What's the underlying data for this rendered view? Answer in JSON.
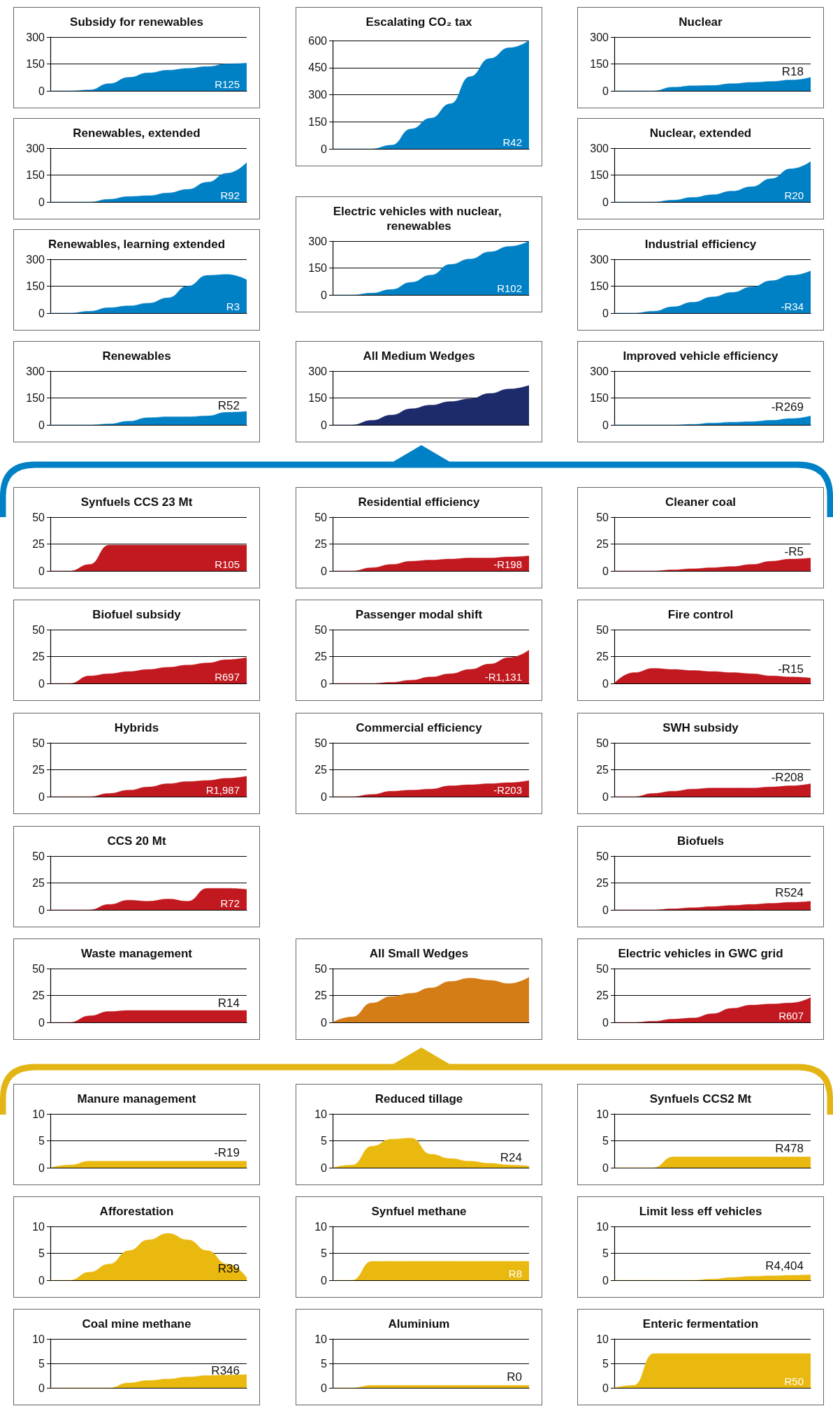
{
  "chart_data": [
    {
      "type": "area",
      "title": "Subsidy for renewables",
      "categories": [
        null,
        null,
        null,
        null,
        null,
        null,
        null,
        null,
        null,
        null,
        null
      ],
      "values": [
        0,
        0,
        5,
        40,
        75,
        100,
        115,
        125,
        135,
        150,
        155
      ],
      "color": "#0081c6",
      "ylim": [
        0,
        300
      ],
      "yticks": [
        0,
        150,
        300
      ],
      "grid": "y",
      "tick_labels": "y",
      "annotations": [
        "R125"
      ]
    },
    {
      "type": "area",
      "title": "Escalating CO₂ tax",
      "categories": [
        null,
        null,
        null,
        null,
        null,
        null,
        null,
        null,
        null,
        null,
        null
      ],
      "values": [
        0,
        0,
        0,
        20,
        110,
        170,
        250,
        400,
        500,
        560,
        600
      ],
      "color": "#0081c6",
      "ylim": [
        0,
        600
      ],
      "yticks": [
        0,
        150,
        300,
        450,
        600
      ],
      "grid": "y",
      "tick_labels": "y",
      "annotations": [
        "R42"
      ]
    },
    {
      "type": "area",
      "title": "Nuclear",
      "categories": [
        null,
        null,
        null,
        null,
        null,
        null,
        null,
        null,
        null,
        null,
        null
      ],
      "values": [
        0,
        0,
        0,
        20,
        28,
        30,
        40,
        47,
        52,
        60,
        75
      ],
      "color": "#0081c6",
      "ylim": [
        0,
        300
      ],
      "yticks": [
        0,
        150,
        300
      ],
      "grid": "y",
      "tick_labels": "y",
      "annotations": [
        "R18"
      ]
    },
    {
      "type": "area",
      "title": "Renewables, extended",
      "categories": [
        null,
        null,
        null,
        null,
        null,
        null,
        null,
        null,
        null,
        null,
        null
      ],
      "values": [
        0,
        0,
        0,
        15,
        30,
        35,
        50,
        70,
        110,
        160,
        220
      ],
      "color": "#0081c6",
      "ylim": [
        0,
        300
      ],
      "yticks": [
        0,
        150,
        300
      ],
      "grid": "y",
      "tick_labels": "y",
      "annotations": [
        "R92"
      ]
    },
    {
      "type": "area",
      "title": "Nuclear, extended",
      "categories": [
        null,
        null,
        null,
        null,
        null,
        null,
        null,
        null,
        null,
        null,
        null
      ],
      "values": [
        0,
        0,
        0,
        10,
        25,
        40,
        60,
        85,
        130,
        185,
        225
      ],
      "color": "#0081c6",
      "ylim": [
        0,
        300
      ],
      "yticks": [
        0,
        150,
        300
      ],
      "grid": "y",
      "tick_labels": "y",
      "annotations": [
        "R20"
      ]
    },
    {
      "type": "area",
      "title": "Electric vehicles with nuclear, renewables",
      "categories": [
        null,
        null,
        null,
        null,
        null,
        null,
        null,
        null,
        null,
        null,
        null
      ],
      "values": [
        0,
        0,
        10,
        30,
        70,
        110,
        170,
        200,
        240,
        270,
        300
      ],
      "color": "#0081c6",
      "ylim": [
        0,
        300
      ],
      "yticks": [
        0,
        150,
        300
      ],
      "grid": "y",
      "tick_labels": "y",
      "annotations": [
        "R102"
      ]
    },
    {
      "type": "area",
      "title": "Renewables, learning extended",
      "categories": [
        null,
        null,
        null,
        null,
        null,
        null,
        null,
        null,
        null,
        null,
        null
      ],
      "values": [
        0,
        0,
        10,
        30,
        40,
        55,
        85,
        150,
        210,
        215,
        185
      ],
      "color": "#0081c6",
      "ylim": [
        0,
        300
      ],
      "yticks": [
        0,
        150,
        300
      ],
      "grid": "y",
      "tick_labels": "y",
      "annotations": [
        "R3"
      ]
    },
    {
      "type": "area",
      "title": "Industrial efficiency",
      "categories": [
        null,
        null,
        null,
        null,
        null,
        null,
        null,
        null,
        null,
        null,
        null
      ],
      "values": [
        0,
        0,
        10,
        35,
        60,
        90,
        115,
        145,
        180,
        210,
        235
      ],
      "color": "#0081c6",
      "ylim": [
        0,
        300
      ],
      "yticks": [
        0,
        150,
        300
      ],
      "grid": "y",
      "tick_labels": "y",
      "annotations": [
        "-R34"
      ]
    },
    {
      "type": "area",
      "title": "Renewables",
      "categories": [
        null,
        null,
        null,
        null,
        null,
        null,
        null,
        null,
        null,
        null,
        null
      ],
      "values": [
        0,
        0,
        0,
        5,
        20,
        40,
        45,
        45,
        50,
        70,
        75
      ],
      "color": "#0081c6",
      "ylim": [
        0,
        300
      ],
      "yticks": [
        0,
        150,
        300
      ],
      "grid": "y",
      "tick_labels": "y",
      "annotations": [
        "R52"
      ]
    },
    {
      "type": "area",
      "title": "All Medium Wedges",
      "categories": [
        null,
        null,
        null,
        null,
        null,
        null,
        null,
        null,
        null,
        null,
        null
      ],
      "values": [
        0,
        0,
        25,
        55,
        90,
        110,
        130,
        145,
        175,
        200,
        220
      ],
      "color": "#1d2a6b",
      "ylim": [
        0,
        300
      ],
      "yticks": [
        0,
        150,
        300
      ],
      "grid": "y",
      "tick_labels": "y"
    },
    {
      "type": "area",
      "title": "Improved vehicle efficiency",
      "categories": [
        null,
        null,
        null,
        null,
        null,
        null,
        null,
        null,
        null,
        null,
        null
      ],
      "values": [
        0,
        0,
        0,
        0,
        3,
        10,
        15,
        18,
        25,
        35,
        50
      ],
      "color": "#0081c6",
      "ylim": [
        0,
        300
      ],
      "yticks": [
        0,
        150,
        300
      ],
      "grid": "y",
      "tick_labels": "y",
      "annotations": [
        "-R269"
      ]
    },
    {
      "type": "area",
      "title": "Synfuels CCS 23 Mt",
      "categories": [
        null,
        null,
        null,
        null,
        null,
        null,
        null,
        null,
        null,
        null,
        null
      ],
      "values": [
        0,
        0,
        6,
        24,
        24,
        24,
        24,
        24,
        24,
        24,
        24
      ],
      "color": "#c1191f",
      "ylim": [
        0,
        50
      ],
      "yticks": [
        0,
        25,
        50
      ],
      "grid": "y",
      "tick_labels": "y",
      "annotations": [
        "R105"
      ]
    },
    {
      "type": "area",
      "title": "Residential efficiency",
      "categories": [
        null,
        null,
        null,
        null,
        null,
        null,
        null,
        null,
        null,
        null,
        null
      ],
      "values": [
        0,
        0,
        3,
        6,
        9,
        10,
        11,
        12,
        12,
        13,
        14
      ],
      "color": "#c1191f",
      "ylim": [
        0,
        50
      ],
      "yticks": [
        0,
        25,
        50
      ],
      "grid": "y",
      "tick_labels": "y",
      "annotations": [
        "-R198"
      ]
    },
    {
      "type": "area",
      "title": "Cleaner coal",
      "categories": [
        null,
        null,
        null,
        null,
        null,
        null,
        null,
        null,
        null,
        null,
        null
      ],
      "values": [
        0,
        0,
        0,
        1,
        2,
        3,
        4,
        6,
        9,
        11,
        12
      ],
      "color": "#c1191f",
      "ylim": [
        0,
        50
      ],
      "yticks": [
        0,
        25,
        50
      ],
      "grid": "y",
      "tick_labels": "y",
      "annotations": [
        "-R5"
      ]
    },
    {
      "type": "area",
      "title": "Biofuel subsidy",
      "categories": [
        null,
        null,
        null,
        null,
        null,
        null,
        null,
        null,
        null,
        null,
        null
      ],
      "values": [
        0,
        0,
        7,
        9,
        11,
        13,
        15,
        17,
        19,
        22,
        24
      ],
      "color": "#c1191f",
      "ylim": [
        0,
        50
      ],
      "yticks": [
        0,
        25,
        50
      ],
      "grid": "y",
      "tick_labels": "y",
      "annotations": [
        "R697"
      ]
    },
    {
      "type": "area",
      "title": "Passenger modal shift",
      "categories": [
        null,
        null,
        null,
        null,
        null,
        null,
        null,
        null,
        null,
        null,
        null
      ],
      "values": [
        0,
        0,
        0,
        1,
        3,
        6,
        9,
        13,
        18,
        24,
        31
      ],
      "color": "#c1191f",
      "ylim": [
        0,
        50
      ],
      "yticks": [
        0,
        25,
        50
      ],
      "grid": "y",
      "tick_labels": "y",
      "annotations": [
        "-R1,131"
      ]
    },
    {
      "type": "area",
      "title": "Fire control",
      "categories": [
        null,
        null,
        null,
        null,
        null,
        null,
        null,
        null,
        null,
        null,
        null
      ],
      "values": [
        0,
        10,
        14,
        13,
        12,
        11,
        10,
        9,
        7,
        6,
        5
      ],
      "color": "#c1191f",
      "ylim": [
        0,
        50
      ],
      "yticks": [
        0,
        25,
        50
      ],
      "grid": "y",
      "tick_labels": "y",
      "annotations": [
        "-R15"
      ]
    },
    {
      "type": "area",
      "title": "Hybrids",
      "categories": [
        null,
        null,
        null,
        null,
        null,
        null,
        null,
        null,
        null,
        null,
        null
      ],
      "values": [
        0,
        0,
        0,
        3,
        6,
        9,
        12,
        14,
        15,
        17,
        19
      ],
      "color": "#c1191f",
      "ylim": [
        0,
        50
      ],
      "yticks": [
        0,
        25,
        50
      ],
      "grid": "y",
      "tick_labels": "y",
      "annotations": [
        "R1,987"
      ]
    },
    {
      "type": "area",
      "title": "Commercial efficiency",
      "categories": [
        null,
        null,
        null,
        null,
        null,
        null,
        null,
        null,
        null,
        null,
        null
      ],
      "values": [
        0,
        0,
        2,
        5,
        6,
        7,
        10,
        11,
        12,
        13,
        15
      ],
      "color": "#c1191f",
      "ylim": [
        0,
        50
      ],
      "yticks": [
        0,
        25,
        50
      ],
      "grid": "y",
      "tick_labels": "y",
      "annotations": [
        "-R203"
      ]
    },
    {
      "type": "area",
      "title": "SWH subsidy",
      "categories": [
        null,
        null,
        null,
        null,
        null,
        null,
        null,
        null,
        null,
        null,
        null
      ],
      "values": [
        0,
        0,
        3,
        5,
        7,
        8,
        8,
        8,
        9,
        10,
        12
      ],
      "color": "#c1191f",
      "ylim": [
        0,
        50
      ],
      "yticks": [
        0,
        25,
        50
      ],
      "grid": "y",
      "tick_labels": "y",
      "annotations": [
        "-R208"
      ]
    },
    {
      "type": "area",
      "title": "CCS 20 Mt",
      "categories": [
        null,
        null,
        null,
        null,
        null,
        null,
        null,
        null,
        null,
        null,
        null
      ],
      "values": [
        0,
        0,
        0,
        5,
        9,
        8,
        10,
        8,
        20,
        20,
        19
      ],
      "color": "#c1191f",
      "ylim": [
        0,
        50
      ],
      "yticks": [
        0,
        25,
        50
      ],
      "grid": "y",
      "tick_labels": "y",
      "annotations": [
        "R72"
      ]
    },
    {
      "type": "area",
      "title": "Biofuels",
      "categories": [
        null,
        null,
        null,
        null,
        null,
        null,
        null,
        null,
        null,
        null,
        null
      ],
      "values": [
        0,
        0,
        0,
        1,
        2,
        3,
        4,
        5,
        6,
        7,
        8
      ],
      "color": "#c1191f",
      "ylim": [
        0,
        50
      ],
      "yticks": [
        0,
        25,
        50
      ],
      "grid": "y",
      "tick_labels": "y",
      "annotations": [
        "R524"
      ]
    },
    {
      "type": "area",
      "title": "Waste management",
      "categories": [
        null,
        null,
        null,
        null,
        null,
        null,
        null,
        null,
        null,
        null,
        null
      ],
      "values": [
        0,
        0,
        6,
        10,
        11,
        11,
        11,
        11,
        11,
        11,
        11
      ],
      "color": "#c1191f",
      "ylim": [
        0,
        50
      ],
      "yticks": [
        0,
        25,
        50
      ],
      "grid": "y",
      "tick_labels": "y",
      "annotations": [
        "R14"
      ]
    },
    {
      "type": "area",
      "title": "All Small Wedges",
      "categories": [
        null,
        null,
        null,
        null,
        null,
        null,
        null,
        null,
        null,
        null,
        null
      ],
      "values": [
        0,
        5,
        18,
        24,
        27,
        32,
        38,
        41,
        39,
        36,
        42
      ],
      "color": "#d47c16",
      "ylim": [
        0,
        50
      ],
      "yticks": [
        0,
        25,
        50
      ],
      "grid": "y",
      "tick_labels": "y"
    },
    {
      "type": "area",
      "title": "Electric vehicles in GWC grid",
      "categories": [
        null,
        null,
        null,
        null,
        null,
        null,
        null,
        null,
        null,
        null,
        null
      ],
      "values": [
        0,
        0,
        1,
        3,
        4,
        8,
        13,
        16,
        17,
        18,
        23
      ],
      "color": "#c1191f",
      "ylim": [
        0,
        50
      ],
      "yticks": [
        0,
        25,
        50
      ],
      "grid": "y",
      "tick_labels": "y",
      "annotations": [
        "R607"
      ]
    },
    {
      "type": "area",
      "title": "Manure management",
      "categories": [
        null,
        null,
        null,
        null,
        null,
        null,
        null,
        null,
        null,
        null,
        null
      ],
      "values": [
        0,
        0.5,
        1.2,
        1.2,
        1.2,
        1.2,
        1.2,
        1.2,
        1.2,
        1.2,
        1.2
      ],
      "color": "#e9b90f",
      "ylim": [
        0,
        10
      ],
      "yticks": [
        0,
        5,
        10
      ],
      "grid": "y",
      "tick_labels": "y",
      "annotations": [
        "-R19"
      ]
    },
    {
      "type": "area",
      "title": "Reduced tillage",
      "categories": [
        null,
        null,
        null,
        null,
        null,
        null,
        null,
        null,
        null,
        null,
        null
      ],
      "values": [
        0,
        0.5,
        4,
        5.3,
        5.5,
        2.5,
        1.7,
        1.2,
        0.8,
        0.5,
        0.3
      ],
      "color": "#e9b90f",
      "ylim": [
        0,
        10
      ],
      "yticks": [
        0,
        5,
        10
      ],
      "grid": "y",
      "tick_labels": "y",
      "annotations": [
        "R24"
      ]
    },
    {
      "type": "area",
      "title": "Synfuels CCS2 Mt",
      "categories": [
        null,
        null,
        null,
        null,
        null,
        null,
        null,
        null,
        null,
        null,
        null
      ],
      "values": [
        0,
        0,
        0,
        2,
        2,
        2,
        2,
        2,
        2,
        2,
        2
      ],
      "color": "#e9b90f",
      "ylim": [
        0,
        10
      ],
      "yticks": [
        0,
        5,
        10
      ],
      "grid": "y",
      "tick_labels": "y",
      "annotations": [
        "R478"
      ]
    },
    {
      "type": "area",
      "title": "Afforestation",
      "categories": [
        null,
        null,
        null,
        null,
        null,
        null,
        null,
        null,
        null,
        null,
        null
      ],
      "values": [
        0,
        0,
        1.5,
        3,
        5.5,
        7.5,
        8.7,
        7.5,
        5.5,
        3,
        0.5
      ],
      "color": "#e9b90f",
      "ylim": [
        0,
        10
      ],
      "yticks": [
        0,
        5,
        10
      ],
      "grid": "y",
      "tick_labels": "y",
      "annotations": [
        "R39"
      ]
    },
    {
      "type": "area",
      "title": "Synfuel methane",
      "categories": [
        null,
        null,
        null,
        null,
        null,
        null,
        null,
        null,
        null,
        null,
        null
      ],
      "values": [
        0,
        0,
        3.5,
        3.5,
        3.5,
        3.5,
        3.5,
        3.5,
        3.5,
        3.5,
        3.5
      ],
      "color": "#e9b90f",
      "ylim": [
        0,
        10
      ],
      "yticks": [
        0,
        5,
        10
      ],
      "grid": "y",
      "tick_labels": "y",
      "annotations": [
        "R8"
      ]
    },
    {
      "type": "area",
      "title": "Limit less eff vehicles",
      "categories": [
        null,
        null,
        null,
        null,
        null,
        null,
        null,
        null,
        null,
        null,
        null
      ],
      "values": [
        0,
        0,
        0,
        0,
        0,
        0.2,
        0.5,
        0.7,
        0.8,
        0.9,
        1
      ],
      "color": "#e9b90f",
      "ylim": [
        0,
        10
      ],
      "yticks": [
        0,
        5,
        10
      ],
      "grid": "y",
      "tick_labels": "y",
      "annotations": [
        "R4,404"
      ]
    },
    {
      "type": "area",
      "title": "Coal mine methane",
      "categories": [
        null,
        null,
        null,
        null,
        null,
        null,
        null,
        null,
        null,
        null,
        null
      ],
      "values": [
        0,
        0,
        0,
        0,
        1,
        1.5,
        1.8,
        2.2,
        2.5,
        2.6,
        2.7
      ],
      "color": "#e9b90f",
      "ylim": [
        0,
        10
      ],
      "yticks": [
        0,
        5,
        10
      ],
      "grid": "y",
      "tick_labels": "y",
      "annotations": [
        "R346"
      ]
    },
    {
      "type": "area",
      "title": "Aluminium",
      "categories": [
        null,
        null,
        null,
        null,
        null,
        null,
        null,
        null,
        null,
        null,
        null
      ],
      "values": [
        0,
        0,
        0.5,
        0.5,
        0.5,
        0.5,
        0.5,
        0.5,
        0.5,
        0.5,
        0.5
      ],
      "color": "#e9b90f",
      "ylim": [
        0,
        10
      ],
      "yticks": [
        0,
        5,
        10
      ],
      "grid": "y",
      "tick_labels": "y",
      "annotations": [
        "R0"
      ]
    },
    {
      "type": "area",
      "title": "Enteric fermentation",
      "categories": [
        null,
        null,
        null,
        null,
        null,
        null,
        null,
        null,
        null,
        null,
        null
      ],
      "values": [
        0,
        0.5,
        7,
        7,
        7,
        7,
        7,
        7,
        7,
        7,
        7
      ],
      "color": "#e9b90f",
      "ylim": [
        0,
        10
      ],
      "yticks": [
        0,
        5,
        10
      ],
      "grid": "y",
      "tick_labels": "y",
      "annotations": [
        "R50"
      ]
    }
  ]
}
